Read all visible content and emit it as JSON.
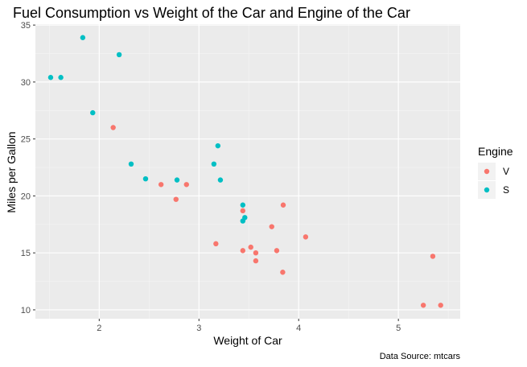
{
  "chart_data": {
    "type": "scatter",
    "title": "Fuel Consumption vs Weight of the Car and Engine of the Car",
    "xlabel": "Weight of Car",
    "ylabel": "Miles per Gallon",
    "caption": "Data Source: mtcars",
    "xlim": [
      1.36,
      5.62
    ],
    "ylim": [
      9.22,
      35.08
    ],
    "x_ticks": [
      2,
      3,
      4,
      5
    ],
    "y_ticks": [
      10,
      15,
      20,
      25,
      30,
      35
    ],
    "grid": true,
    "legend": {
      "title": "Engine",
      "position": "right",
      "entries": [
        {
          "label": "V",
          "color": "#F8766D"
        },
        {
          "label": "S",
          "color": "#00BFC4"
        }
      ]
    },
    "series": [
      {
        "name": "V",
        "color": "#F8766D",
        "points": [
          [
            2.14,
            26.0
          ],
          [
            2.62,
            21.0
          ],
          [
            2.875,
            21.0
          ],
          [
            2.77,
            19.7
          ],
          [
            3.17,
            15.8
          ],
          [
            3.44,
            18.7
          ],
          [
            3.44,
            15.2
          ],
          [
            3.52,
            15.5
          ],
          [
            3.57,
            15.0
          ],
          [
            3.57,
            14.3
          ],
          [
            3.73,
            17.3
          ],
          [
            3.78,
            15.2
          ],
          [
            3.84,
            13.3
          ],
          [
            3.845,
            19.2
          ],
          [
            4.07,
            16.4
          ],
          [
            5.25,
            10.4
          ],
          [
            5.345,
            14.7
          ],
          [
            5.424,
            10.4
          ]
        ]
      },
      {
        "name": "S",
        "color": "#00BFC4",
        "points": [
          [
            1.513,
            30.4
          ],
          [
            1.615,
            30.4
          ],
          [
            1.835,
            33.9
          ],
          [
            1.935,
            27.3
          ],
          [
            2.2,
            32.4
          ],
          [
            2.32,
            22.8
          ],
          [
            2.465,
            21.5
          ],
          [
            2.78,
            21.4
          ],
          [
            3.15,
            22.8
          ],
          [
            3.19,
            24.4
          ],
          [
            3.215,
            21.4
          ],
          [
            3.44,
            19.2
          ],
          [
            3.44,
            17.8
          ],
          [
            3.46,
            18.1
          ]
        ]
      }
    ]
  }
}
